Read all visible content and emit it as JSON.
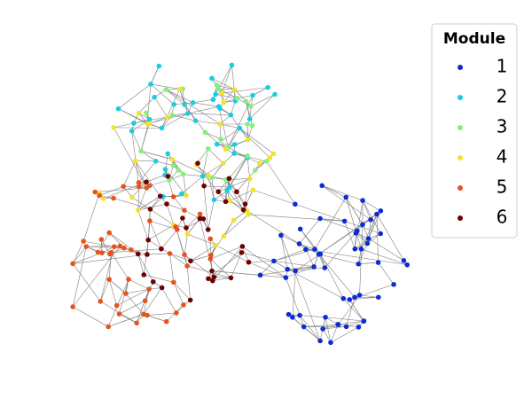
{
  "chart_data": {
    "type": "network",
    "legend_title": "Module",
    "legend_position": "upper right",
    "series": [
      {
        "name": "1",
        "color": "#0d2bd4"
      },
      {
        "name": "2",
        "color": "#17cde3"
      },
      {
        "name": "3",
        "color": "#86f07a"
      },
      {
        "name": "4",
        "color": "#f2e32a"
      },
      {
        "name": "5",
        "color": "#e8521c"
      },
      {
        "name": "6",
        "color": "#6e0000"
      }
    ]
  }
}
